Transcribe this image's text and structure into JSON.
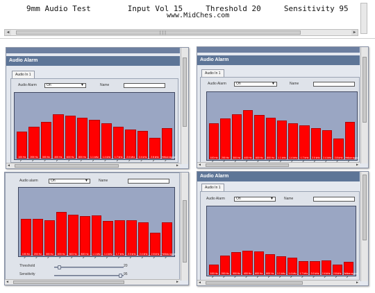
{
  "header": {
    "line1": "9mm Audio Test        Input Vol 15     Threshold 20     Sensitivity 95",
    "line2": "www.MidChes.com"
  },
  "window_title": "Audio Alarm",
  "tab_label": "Audio In 1",
  "audio_alarm_label": "Audio Alarm",
  "audio_alarm_label_lower": "Audio alarm",
  "select_value": "On",
  "name_label": "Name",
  "bar_labels": [
    "100 Hz",
    "200 Hz",
    "300 Hz",
    "400 Hz",
    "600 Hz",
    "800 Hz",
    "1.1 kHz",
    "1.4 kHz",
    "1.7 kHz",
    "2.0 kHz",
    "2.4 kHz",
    "2.8 kHz",
    "Yellow signal"
  ],
  "threshold_label": "Threshold",
  "sensitivity_label": "Sensitivity",
  "threshold_value": "20",
  "sensitivity_value": "95",
  "colors": {
    "bar": "#ff0000",
    "chart_bg": "#9aa6c3",
    "title_bar": "#5d7597"
  },
  "panels": [
    {
      "levels": [
        0.42,
        0.5,
        0.58,
        0.7,
        0.67,
        0.64,
        0.61,
        0.55,
        0.5,
        0.46,
        0.43,
        0.33,
        0.48
      ]
    },
    {
      "levels": [
        0.55,
        0.63,
        0.69,
        0.76,
        0.68,
        0.64,
        0.6,
        0.55,
        0.52,
        0.48,
        0.45,
        0.32,
        0.57
      ]
    },
    {
      "levels": [
        0.56,
        0.56,
        0.54,
        0.66,
        0.62,
        0.6,
        0.61,
        0.53,
        0.54,
        0.54,
        0.5,
        0.35,
        0.51
      ]
    },
    {
      "levels": [
        0.16,
        0.29,
        0.34,
        0.36,
        0.35,
        0.31,
        0.28,
        0.26,
        0.21,
        0.21,
        0.22,
        0.16,
        0.2
      ]
    }
  ]
}
